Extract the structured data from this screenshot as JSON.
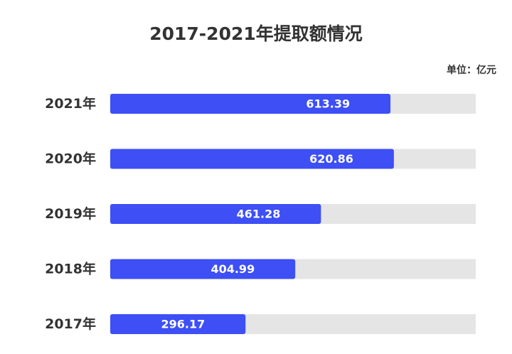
{
  "chart_data": {
    "type": "bar",
    "orientation": "horizontal",
    "title": "2017-2021年提取额情况",
    "unit_label": "单位：亿元",
    "categories": [
      "2021年",
      "2020年",
      "2019年",
      "2018年",
      "2017年"
    ],
    "values": [
      613.39,
      620.86,
      461.28,
      404.99,
      296.17
    ],
    "value_labels": [
      "613.39",
      "620.86",
      "461.28",
      "404.99",
      "296.17"
    ],
    "xlim": [
      0,
      800
    ],
    "grid": false,
    "legend": "none",
    "colors": {
      "bar": "#3d4ff5",
      "track": "#e5e5e5",
      "label_on_bar": "#ffffff",
      "text": "#333333"
    }
  }
}
